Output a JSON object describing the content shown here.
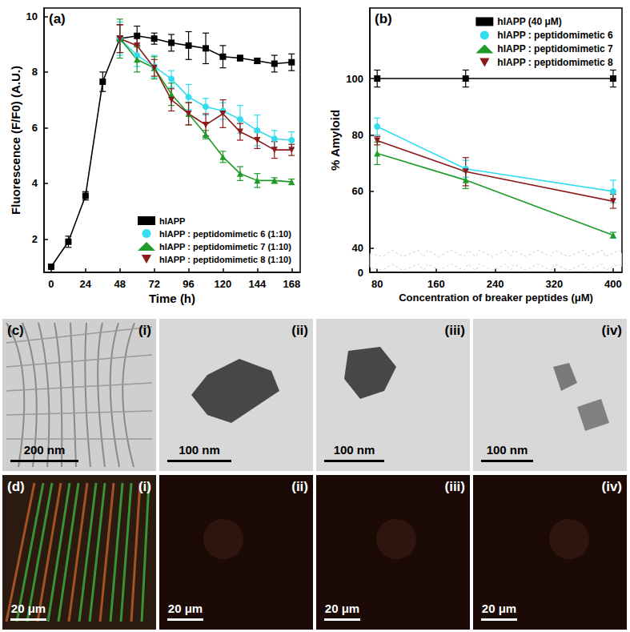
{
  "chart_data": [
    {
      "type": "line",
      "title": "(a)",
      "xlabel": "Time (h)",
      "ylabel": "Fluorescence (F/F0) (A.U.)",
      "xlim": [
        -5,
        174
      ],
      "xticks": [
        0,
        24,
        48,
        72,
        96,
        120,
        144,
        168
      ],
      "ylim": [
        0.8,
        10.3
      ],
      "yticks": [
        2,
        4,
        6,
        8,
        10
      ],
      "grid": false,
      "legend": "lower right",
      "series": [
        {
          "name": "hIAPP",
          "color": "#000000",
          "marker": "square",
          "x": [
            0,
            12,
            24,
            36,
            48,
            60,
            72,
            84,
            96,
            108,
            120,
            132,
            144,
            156,
            168
          ],
          "values": [
            1.0,
            1.9,
            3.55,
            7.65,
            9.2,
            9.3,
            9.2,
            9.05,
            8.95,
            8.85,
            8.55,
            8.5,
            8.4,
            8.3,
            8.35
          ],
          "errors": [
            0.05,
            0.2,
            0.15,
            0.35,
            0.5,
            0.35,
            0.2,
            0.3,
            0.5,
            0.55,
            0.4,
            0.1,
            0.1,
            0.3,
            0.3
          ]
        },
        {
          "name": "hIAPP : peptidomimetic 6 (1:10)",
          "color": "#33ddee",
          "marker": "circle",
          "x": [
            48,
            60,
            72,
            84,
            96,
            108,
            120,
            132,
            144,
            156,
            168
          ],
          "values": [
            9.2,
            8.6,
            8.2,
            7.75,
            7.1,
            6.75,
            6.6,
            6.3,
            5.9,
            5.6,
            5.55
          ],
          "errors": [
            0.6,
            0.4,
            0.4,
            0.3,
            0.45,
            0.3,
            0.3,
            0.5,
            0.55,
            0.3,
            0.3
          ]
        },
        {
          "name": "hIAPP : peptidomimetic 7 (1:10)",
          "color": "#1e9b28",
          "marker": "triangle",
          "x": [
            48,
            60,
            72,
            84,
            96,
            108,
            120,
            132,
            144,
            156,
            168
          ],
          "values": [
            9.2,
            8.45,
            8.15,
            7.2,
            6.5,
            5.75,
            4.95,
            4.35,
            4.1,
            4.1,
            4.05
          ],
          "errors": [
            0.7,
            0.45,
            0.4,
            0.4,
            0.4,
            0.15,
            0.2,
            0.25,
            0.25,
            0.1,
            0.1
          ]
        },
        {
          "name": "hIAPP : peptidomimetic 8 (1:10)",
          "color": "#8b1a1a",
          "marker": "triangle_down",
          "x": [
            48,
            60,
            72,
            84,
            96,
            108,
            120,
            132,
            144,
            156,
            168
          ],
          "values": [
            9.2,
            8.95,
            8.15,
            7.0,
            6.5,
            6.1,
            6.5,
            5.85,
            5.55,
            5.2,
            5.2
          ],
          "errors": [
            0.5,
            0.4,
            0.3,
            0.4,
            0.4,
            0.4,
            0.5,
            0.3,
            0.3,
            0.3,
            0.2
          ]
        }
      ]
    },
    {
      "type": "line",
      "title": "(b)",
      "xlabel": "Concentration of breaker peptides (μM)",
      "ylabel": "% Amyloid",
      "xlim": [
        70,
        412
      ],
      "xticks": [
        80,
        160,
        240,
        320,
        400
      ],
      "ylim": [
        0,
        125
      ],
      "yticks": [
        0,
        40,
        60,
        80,
        100
      ],
      "grid": false,
      "legend": "upper right",
      "series": [
        {
          "name": "hIAPP (40 μM)",
          "color": "#000000",
          "marker": "square",
          "x": [
            80,
            200,
            400
          ],
          "values": [
            100,
            100,
            100
          ],
          "errors": [
            3,
            3,
            3
          ]
        },
        {
          "name": "hIAPP : peptidomimetic 6",
          "color": "#33ddee",
          "marker": "circle",
          "x": [
            80,
            200,
            400
          ],
          "values": [
            83,
            68,
            60
          ],
          "errors": [
            3,
            3,
            4
          ]
        },
        {
          "name": "hIAPP : peptidomimetic 7",
          "color": "#1e9b28",
          "marker": "triangle",
          "x": [
            80,
            200,
            400
          ],
          "values": [
            73.5,
            64,
            44.5
          ],
          "errors": [
            4,
            3,
            1
          ]
        },
        {
          "name": "hIAPP : peptidomimetic 8",
          "color": "#8b1a1a",
          "marker": "triangle_down",
          "x": [
            80,
            200,
            400
          ],
          "values": [
            78,
            67,
            56.5
          ],
          "errors": [
            1.5,
            5,
            2.5
          ]
        }
      ]
    }
  ],
  "panels": [
    {
      "label": "(c)",
      "images": [
        {
          "label": "(i)",
          "scale_bar": "200 nm"
        },
        {
          "label": "(ii)",
          "scale_bar": "100 nm"
        },
        {
          "label": "(iii)",
          "scale_bar": "100 nm"
        },
        {
          "label": "(iv)",
          "scale_bar": "100 nm"
        }
      ]
    },
    {
      "label": "(d)",
      "images": [
        {
          "label": "(i)",
          "scale_bar": "20 μm"
        },
        {
          "label": "(ii)",
          "scale_bar": "20 μm"
        },
        {
          "label": "(iii)",
          "scale_bar": "20 μm"
        },
        {
          "label": "(iv)",
          "scale_bar": "20 μm"
        }
      ]
    }
  ]
}
